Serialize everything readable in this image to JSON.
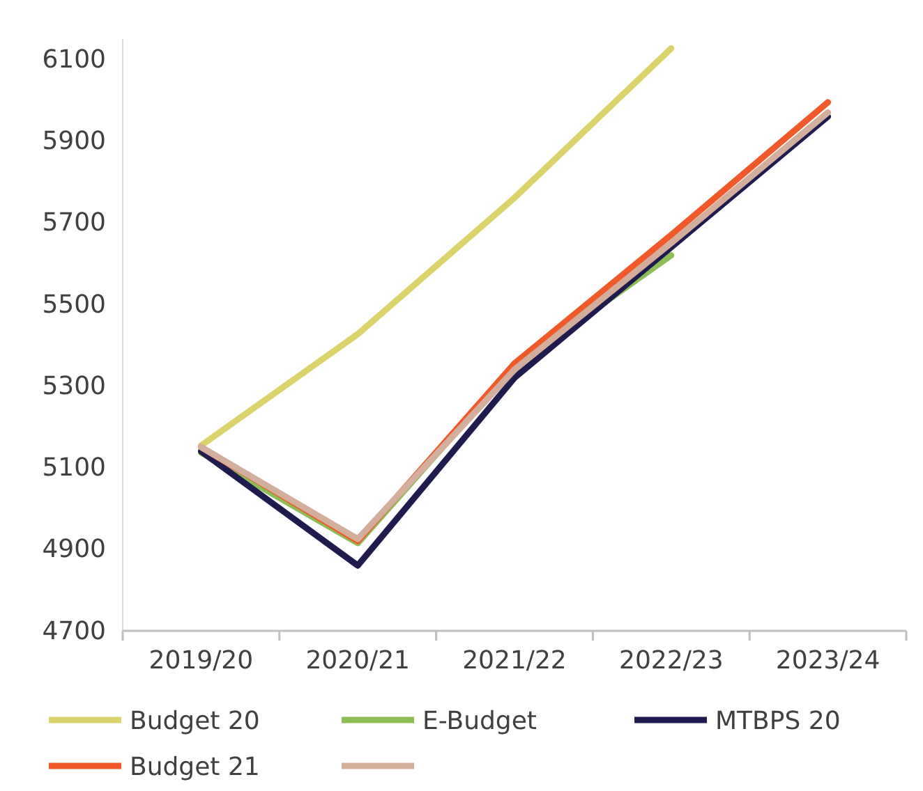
{
  "chart_data": {
    "type": "line",
    "categories": [
      "2019/20",
      "2020/21",
      "2021/22",
      "2022/23",
      "2023/24"
    ],
    "ylim": [
      4700,
      6150
    ],
    "yticks": [
      4700,
      4900,
      5100,
      5300,
      5500,
      5700,
      5900,
      6100
    ],
    "grid": false,
    "legend": "bottom",
    "marker": "none",
    "line_style": "solid",
    "series": [
      {
        "name": "Budget 20",
        "color": "#dbd36c",
        "values": [
          5154,
          5427,
          5761,
          6127,
          null
        ]
      },
      {
        "name": "E-Budget",
        "color": "#8cbd56",
        "values": [
          5137,
          4915,
          5348,
          5620,
          null
        ]
      },
      {
        "name": "MTBPS 20",
        "color": "#1f1b4f",
        "values": [
          5140,
          4860,
          5320,
          5640,
          5960
        ]
      },
      {
        "name": "Budget 21",
        "color": "#f05a2a",
        "values": [
          5150,
          4920,
          5355,
          5670,
          5995
        ]
      },
      {
        "color": "#d3ae9d",
        "values": [
          5150,
          4925,
          5340,
          5650,
          5970
        ]
      }
    ]
  }
}
